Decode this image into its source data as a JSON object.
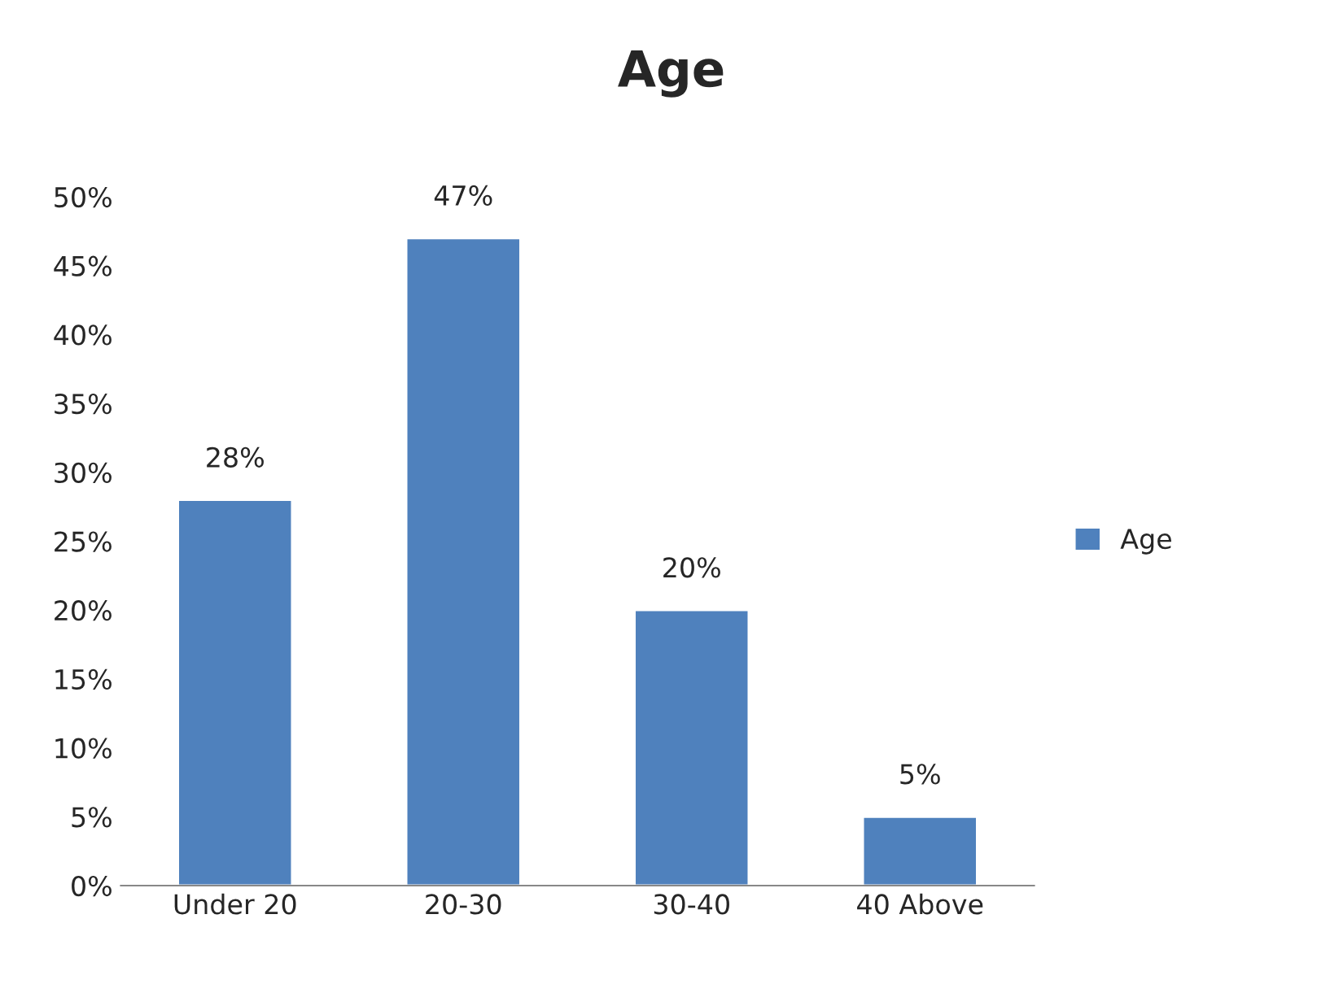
{
  "chart_data": {
    "type": "bar",
    "title": "Age",
    "categories": [
      "Under 20",
      "20-30",
      "30-40",
      "40 Above"
    ],
    "series": [
      {
        "name": "Age",
        "color": "#4f81bd",
        "values": [
          28,
          47,
          20,
          5
        ],
        "value_labels": [
          "28%",
          "47%",
          "20%",
          "5%"
        ]
      }
    ],
    "ylim": [
      0,
      50
    ],
    "yticks": [
      {
        "value": 0,
        "label": "0%"
      },
      {
        "value": 5,
        "label": "5%"
      },
      {
        "value": 10,
        "label": "10%"
      },
      {
        "value": 15,
        "label": "15%"
      },
      {
        "value": 20,
        "label": "20%"
      },
      {
        "value": 25,
        "label": "25%"
      },
      {
        "value": 30,
        "label": "30%"
      },
      {
        "value": 35,
        "label": "35%"
      },
      {
        "value": 40,
        "label": "40%"
      },
      {
        "value": 45,
        "label": "45%"
      },
      {
        "value": 50,
        "label": "50%"
      }
    ],
    "grid": false,
    "legend": "right"
  }
}
